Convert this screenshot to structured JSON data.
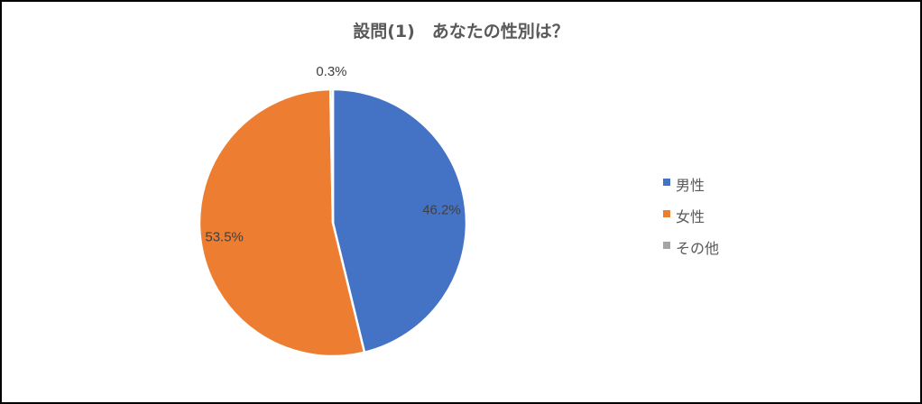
{
  "chart_data": {
    "type": "pie",
    "title": "設問(1)　あなたの性別は？",
    "categories": [
      "男性",
      "女性",
      "その他"
    ],
    "values": [
      46.2,
      53.5,
      0.3
    ],
    "data_labels": [
      "46.2%",
      "53.5%",
      "0.3%"
    ],
    "colors": [
      "#4472C4",
      "#ED7D31",
      "#A5A5A5"
    ],
    "legend_position": "right"
  }
}
